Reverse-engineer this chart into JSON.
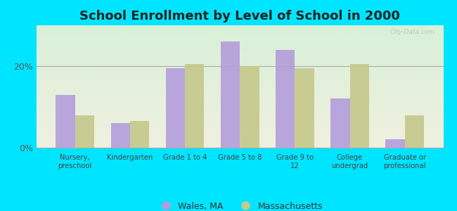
{
  "title": "School Enrollment by Level of School in 2000",
  "categories": [
    "Nursery,\npreschool",
    "Kindergarten",
    "Grade 1 to 4",
    "Grade 5 to 8",
    "Grade 9 to\n12",
    "College\nundergrad",
    "Graduate or\nprofessional"
  ],
  "wales_values": [
    13.0,
    6.0,
    19.5,
    26.0,
    24.0,
    12.0,
    2.0
  ],
  "mass_values": [
    8.0,
    6.5,
    20.5,
    20.0,
    19.5,
    20.5,
    8.0
  ],
  "wales_color": "#b39ddb",
  "mass_color": "#c5c98a",
  "background_outer": "#00e5ff",
  "plot_bg_top_left": "#d8f0d8",
  "plot_bg_bottom_right": "#f0f0e0",
  "ylim": [
    0,
    30
  ],
  "yticks": [
    0,
    20
  ],
  "ytick_labels": [
    "0%",
    "20%"
  ],
  "legend_wales": "Wales, MA",
  "legend_mass": "Massachusetts",
  "title_fontsize": 13,
  "watermark": "City-Data.com"
}
